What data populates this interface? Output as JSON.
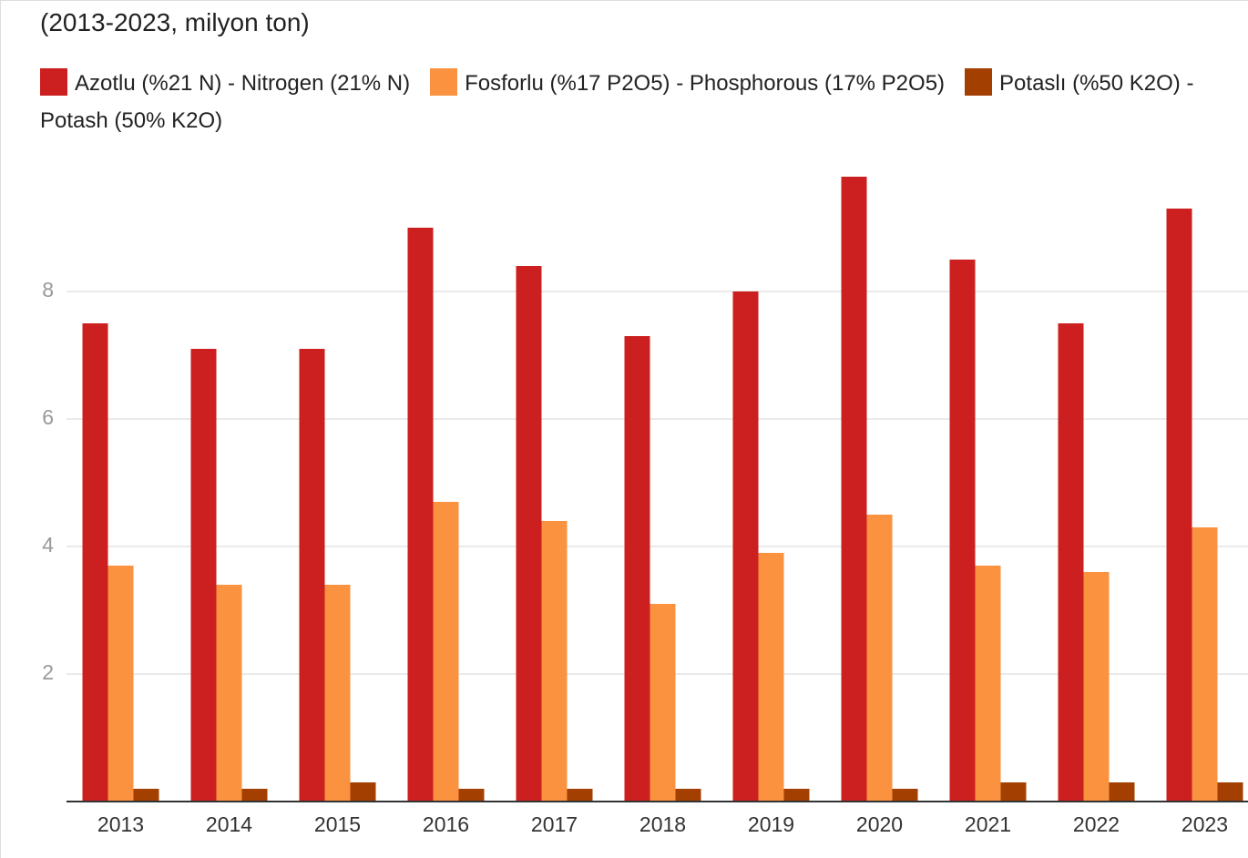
{
  "chart_data": {
    "type": "bar",
    "title": "(2013-2023, milyon ton)",
    "categories": [
      "2013",
      "2014",
      "2015",
      "2016",
      "2017",
      "2018",
      "2019",
      "2020",
      "2021",
      "2022",
      "2023"
    ],
    "series": [
      {
        "name": "Azotlu (%21 N) - Nitrogen (21% N)",
        "color": "#cc1f1f",
        "values": [
          7.5,
          7.1,
          7.1,
          9.0,
          8.4,
          7.3,
          8.0,
          9.8,
          8.5,
          7.5,
          9.3
        ]
      },
      {
        "name": "Fosforlu (%17 P2O5) - Phosphorous (17% P2O5)",
        "color": "#fb9240",
        "values": [
          3.7,
          3.4,
          3.4,
          4.7,
          4.4,
          3.1,
          3.9,
          4.5,
          3.7,
          3.6,
          4.3
        ]
      },
      {
        "name": "Potaslı (%50 K2O) - Potash (50% K2O)",
        "color": "#a33f00",
        "values": [
          0.2,
          0.2,
          0.3,
          0.2,
          0.2,
          0.2,
          0.2,
          0.2,
          0.3,
          0.3,
          0.3
        ]
      }
    ],
    "ylim": [
      0,
      10
    ],
    "yticks": [
      2,
      4,
      6,
      8
    ],
    "grid": true,
    "legend": "top"
  }
}
